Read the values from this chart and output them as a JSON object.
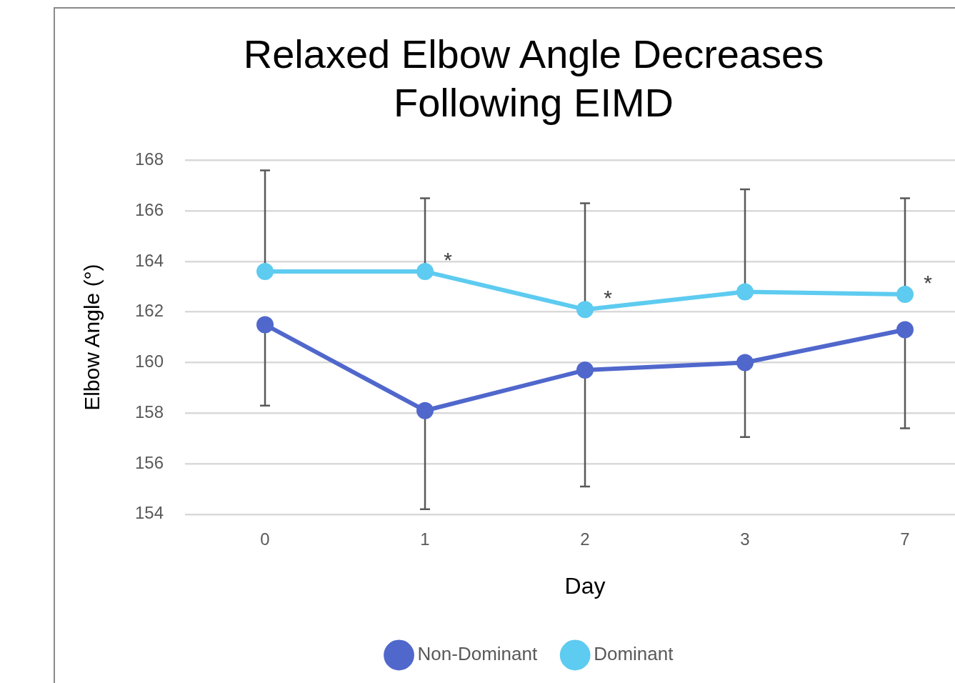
{
  "chart_data": {
    "type": "line",
    "title": "Relaxed Elbow Angle Decreases Following EIMD",
    "xlabel": "Day",
    "ylabel": "Elbow Angle (°)",
    "categories": [
      "0",
      "1",
      "2",
      "3",
      "7"
    ],
    "series": [
      {
        "name": "Non-Dominant",
        "color": "#5067cc",
        "values": [
          161.5,
          158.1,
          159.7,
          160.0,
          161.3
        ],
        "errors": [
          [
            158.3,
            161.5
          ],
          [
            154.2,
            158.1
          ],
          [
            155.1,
            159.7
          ],
          [
            157.05,
            160.0
          ],
          [
            157.4,
            161.3
          ]
        ]
      },
      {
        "name": "Dominant",
        "color": "#5ecbf0",
        "values": [
          163.6,
          163.6,
          162.1,
          162.8,
          162.7
        ],
        "errors": [
          [
            163.6,
            167.6
          ],
          [
            163.6,
            166.5
          ],
          [
            162.1,
            166.3
          ],
          [
            162.8,
            166.85
          ],
          [
            162.7,
            166.5
          ]
        ]
      }
    ],
    "annotations": [
      {
        "text": "*",
        "x": "1",
        "y": 163.6
      },
      {
        "text": "*",
        "x": "2",
        "y": 162.1
      },
      {
        "text": "*",
        "x": "7",
        "y": 162.7
      }
    ],
    "ylim": [
      154,
      168
    ],
    "yticks": [
      154,
      156,
      158,
      160,
      162,
      164,
      166,
      168
    ],
    "grid": "y",
    "legend": "bottom",
    "marker": "circle",
    "line_style": "solid"
  }
}
